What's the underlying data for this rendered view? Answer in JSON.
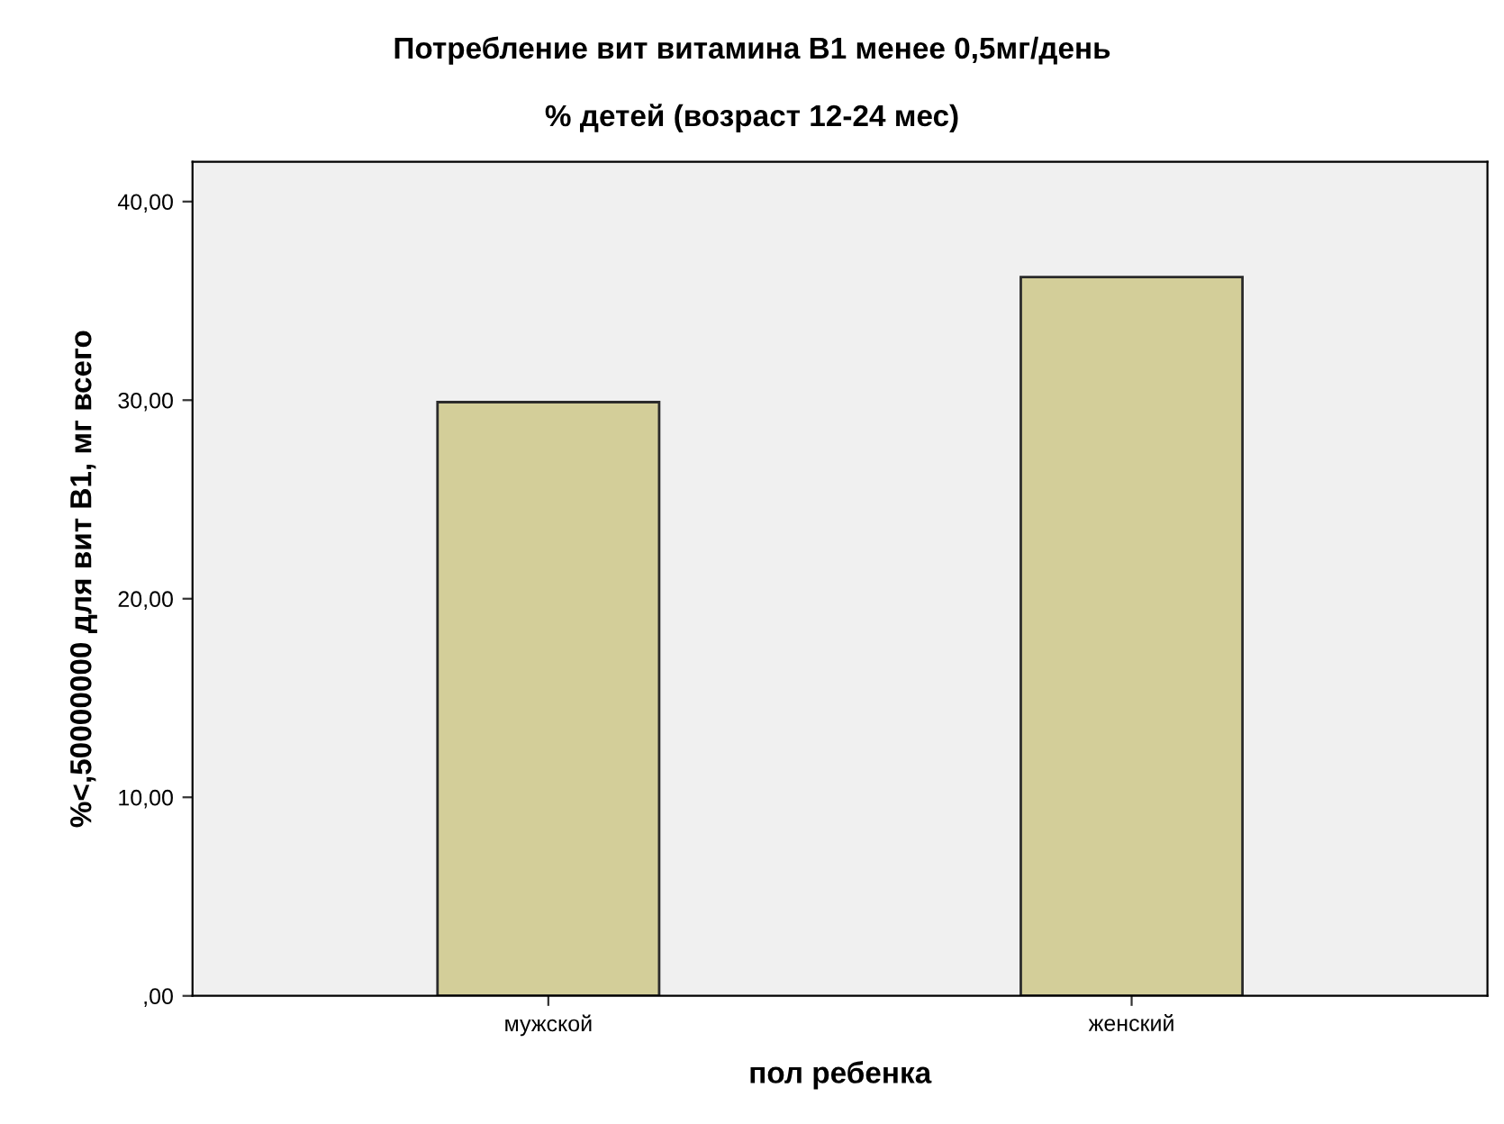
{
  "chart_data": {
    "type": "bar",
    "title": "Потребление вит витамина B1 менее 0,5мг/день",
    "subtitle": "% детей (возраст 12-24 мес)",
    "xlabel": "пол ребенка",
    "ylabel": "%<,50000000 для вит B1, мг всего",
    "categories": [
      "мужской",
      "женский"
    ],
    "values": [
      29.9,
      36.2
    ],
    "color": "#d3ce99",
    "ylim": [
      0,
      42
    ],
    "yticks": [
      {
        "value": 0,
        "label": ",00"
      },
      {
        "value": 10,
        "label": "10,00"
      },
      {
        "value": 20,
        "label": "20,00"
      },
      {
        "value": 30,
        "label": "30,00"
      },
      {
        "value": 40,
        "label": "40,00"
      }
    ],
    "grid": false
  }
}
